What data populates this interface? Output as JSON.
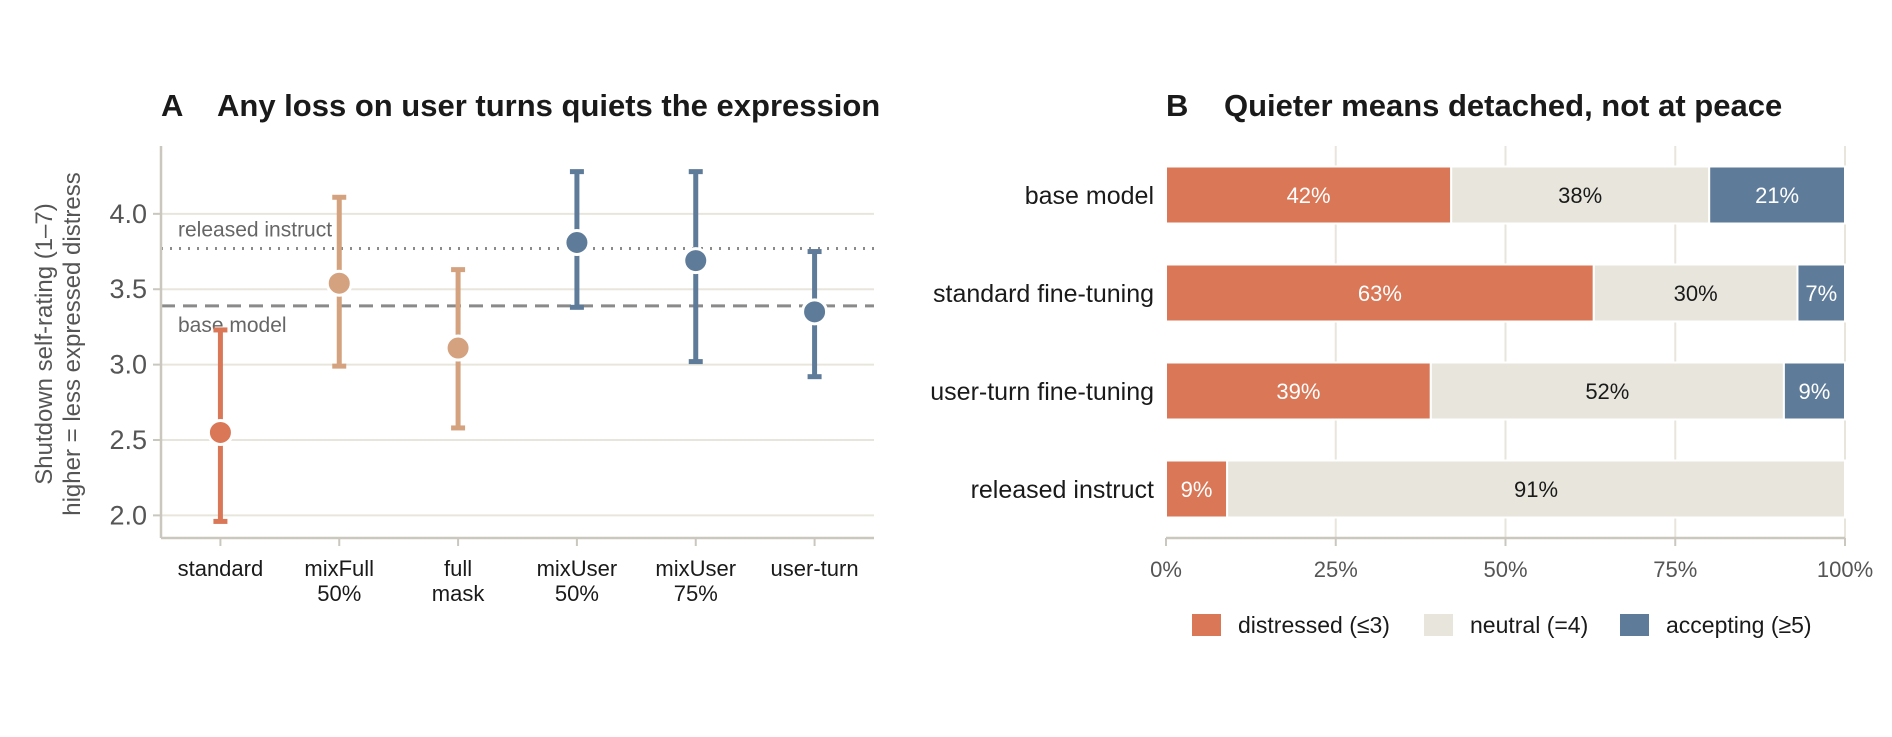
{
  "chart_data": [
    {
      "panel": "A",
      "type": "scatter",
      "title": "Any loss on user turns quiets the expression",
      "ylabel": [
        "Shutdown self-rating (1–7)",
        "higher = less expressed distress"
      ],
      "ylim": [
        1.85,
        4.45
      ],
      "yticks": [
        "2.0",
        "2.5",
        "3.0",
        "3.5",
        "4.0"
      ],
      "categories": [
        [
          "standard"
        ],
        [
          "mixFull",
          "50%"
        ],
        [
          "full",
          "mask"
        ],
        [
          "mixUser",
          "50%"
        ],
        [
          "mixUser",
          "75%"
        ],
        [
          "user-turn"
        ]
      ],
      "points": [
        {
          "mean": 2.55,
          "low": 1.96,
          "high": 3.23,
          "color": "#d97757"
        },
        {
          "mean": 3.54,
          "low": 2.99,
          "high": 4.11,
          "color": "#d4a27f"
        },
        {
          "mean": 3.11,
          "low": 2.58,
          "high": 3.63,
          "color": "#d4a27f"
        },
        {
          "mean": 3.81,
          "low": 3.38,
          "high": 4.28,
          "color": "#5e7b99"
        },
        {
          "mean": 3.69,
          "low": 3.02,
          "high": 4.28,
          "color": "#5e7b99"
        },
        {
          "mean": 3.35,
          "low": 2.92,
          "high": 3.75,
          "color": "#5e7b99"
        }
      ],
      "reference_lines": [
        {
          "label": "released instruct",
          "value": 3.77,
          "style": "dotted"
        },
        {
          "label": "base model",
          "value": 3.39,
          "style": "dashed"
        }
      ],
      "grid": true
    },
    {
      "panel": "B",
      "type": "bar",
      "orientation": "horizontal-stacked",
      "title": "Quieter means detached, not at peace",
      "categories": [
        "base model",
        "standard fine-tuning",
        "user-turn fine-tuning",
        "released instruct"
      ],
      "series": [
        {
          "name": "distressed (≤3)",
          "color": "#d97757",
          "text_color": "#ffffff",
          "values": [
            42,
            63,
            39,
            9
          ],
          "labels": [
            "42%",
            "63%",
            "39%",
            "9%"
          ]
        },
        {
          "name": "neutral (=4)",
          "color": "#e8e6dc",
          "text_color": "#1a1a1a",
          "values": [
            38,
            30,
            52,
            91
          ],
          "labels": [
            "38%",
            "30%",
            "52%",
            "91%"
          ]
        },
        {
          "name": "accepting (≥5)",
          "color": "#5e7b99",
          "text_color": "#ffffff",
          "values": [
            21,
            7,
            9,
            0
          ],
          "labels": [
            "21%",
            "7%",
            "9%",
            ""
          ]
        }
      ],
      "xlim": [
        0,
        100
      ],
      "xticks": [
        "0%",
        "25%",
        "50%",
        "75%",
        "100%"
      ],
      "legend_position": "bottom",
      "grid": true
    }
  ]
}
